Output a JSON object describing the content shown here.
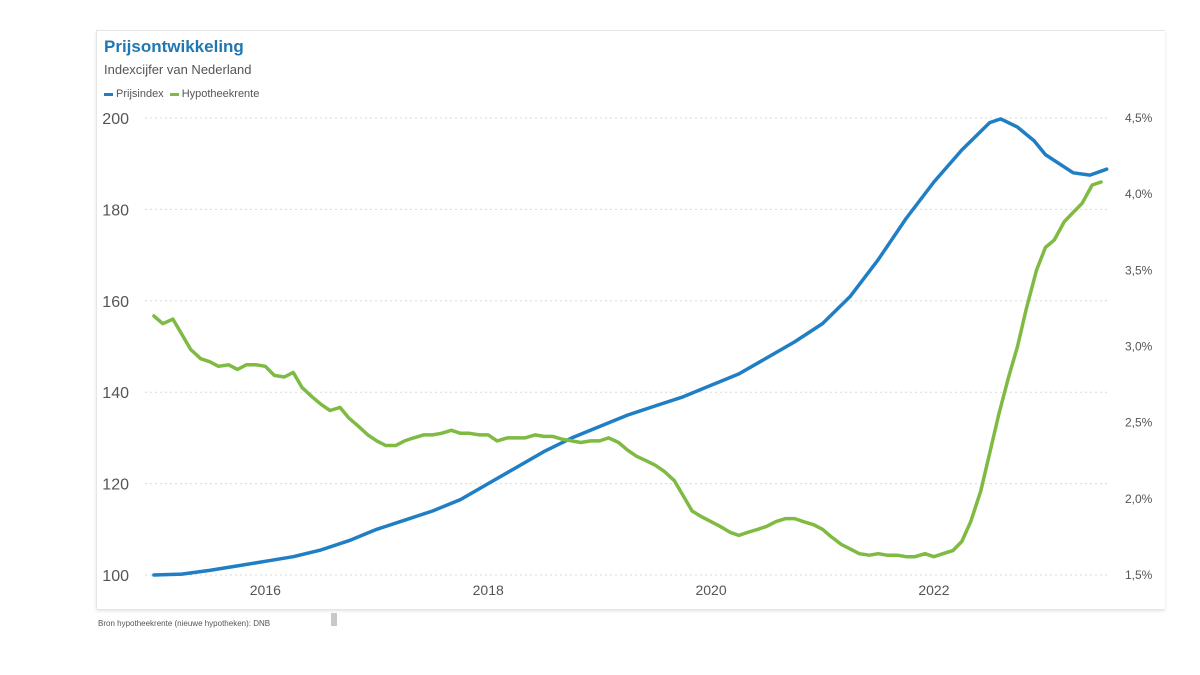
{
  "title": "Prijsontwikkeling",
  "subtitle": "Indexcijfer van Nederland",
  "source": "Bron hypotheekrente (nieuwe hypotheken): DNB",
  "colors": {
    "prijsindex": "#1f7ec4",
    "hypotheekrente": "#7fba42",
    "grid": "#d9d9d9",
    "axis_text": "#555555"
  },
  "chart_data": {
    "type": "line",
    "grid": true,
    "legend_position": "top-left",
    "x_ticks": [
      2016,
      2018,
      2020,
      2022
    ],
    "xlim": [
      2014.92,
      2023.58
    ],
    "y_left": {
      "lim": [
        100,
        200
      ],
      "ticks": [
        "100",
        "120",
        "140",
        "160",
        "180",
        "200"
      ]
    },
    "y_right": {
      "lim": [
        1.5,
        4.5
      ],
      "ticks": [
        "1,5%",
        "2,0%",
        "2,5%",
        "3,0%",
        "3,5%",
        "4,0%",
        "4,5%"
      ]
    },
    "series": [
      {
        "name": "Prijsindex",
        "axis": "left",
        "points": [
          [
            2015.0,
            100.0
          ],
          [
            2015.25,
            100.2
          ],
          [
            2015.5,
            101.0
          ],
          [
            2015.75,
            102.0
          ],
          [
            2016.0,
            103.0
          ],
          [
            2016.25,
            104.0
          ],
          [
            2016.5,
            105.5
          ],
          [
            2016.75,
            107.5
          ],
          [
            2017.0,
            110.0
          ],
          [
            2017.25,
            112.0
          ],
          [
            2017.5,
            114.0
          ],
          [
            2017.75,
            116.5
          ],
          [
            2018.0,
            120.0
          ],
          [
            2018.25,
            123.5
          ],
          [
            2018.5,
            127.0
          ],
          [
            2018.75,
            130.0
          ],
          [
            2019.0,
            132.5
          ],
          [
            2019.25,
            135.0
          ],
          [
            2019.5,
            137.0
          ],
          [
            2019.75,
            139.0
          ],
          [
            2020.0,
            141.5
          ],
          [
            2020.25,
            144.0
          ],
          [
            2020.5,
            147.5
          ],
          [
            2020.75,
            151.0
          ],
          [
            2021.0,
            155.0
          ],
          [
            2021.25,
            161.0
          ],
          [
            2021.5,
            169.0
          ],
          [
            2021.75,
            178.0
          ],
          [
            2022.0,
            186.0
          ],
          [
            2022.25,
            193.0
          ],
          [
            2022.5,
            199.0
          ],
          [
            2022.6,
            199.8
          ],
          [
            2022.75,
            198.0
          ],
          [
            2022.9,
            195.0
          ],
          [
            2023.0,
            192.0
          ],
          [
            2023.25,
            188.0
          ],
          [
            2023.4,
            187.5
          ],
          [
            2023.55,
            188.8
          ]
        ]
      },
      {
        "name": "Hypotheekrente",
        "axis": "right",
        "points": [
          [
            2015.0,
            3.2
          ],
          [
            2015.08,
            3.15
          ],
          [
            2015.17,
            3.18
          ],
          [
            2015.25,
            3.08
          ],
          [
            2015.33,
            2.98
          ],
          [
            2015.42,
            2.92
          ],
          [
            2015.5,
            2.9
          ],
          [
            2015.58,
            2.87
          ],
          [
            2015.67,
            2.88
          ],
          [
            2015.75,
            2.85
          ],
          [
            2015.83,
            2.88
          ],
          [
            2015.92,
            2.88
          ],
          [
            2016.0,
            2.87
          ],
          [
            2016.08,
            2.81
          ],
          [
            2016.17,
            2.8
          ],
          [
            2016.25,
            2.83
          ],
          [
            2016.33,
            2.73
          ],
          [
            2016.42,
            2.67
          ],
          [
            2016.5,
            2.62
          ],
          [
            2016.58,
            2.58
          ],
          [
            2016.67,
            2.6
          ],
          [
            2016.75,
            2.53
          ],
          [
            2016.83,
            2.48
          ],
          [
            2016.92,
            2.42
          ],
          [
            2017.0,
            2.38
          ],
          [
            2017.08,
            2.35
          ],
          [
            2017.17,
            2.35
          ],
          [
            2017.25,
            2.38
          ],
          [
            2017.33,
            2.4
          ],
          [
            2017.42,
            2.42
          ],
          [
            2017.5,
            2.42
          ],
          [
            2017.58,
            2.43
          ],
          [
            2017.67,
            2.45
          ],
          [
            2017.75,
            2.43
          ],
          [
            2017.83,
            2.43
          ],
          [
            2017.92,
            2.42
          ],
          [
            2018.0,
            2.42
          ],
          [
            2018.08,
            2.38
          ],
          [
            2018.17,
            2.4
          ],
          [
            2018.25,
            2.4
          ],
          [
            2018.33,
            2.4
          ],
          [
            2018.42,
            2.42
          ],
          [
            2018.5,
            2.41
          ],
          [
            2018.58,
            2.41
          ],
          [
            2018.67,
            2.39
          ],
          [
            2018.75,
            2.38
          ],
          [
            2018.83,
            2.37
          ],
          [
            2018.92,
            2.38
          ],
          [
            2019.0,
            2.38
          ],
          [
            2019.08,
            2.4
          ],
          [
            2019.17,
            2.37
          ],
          [
            2019.25,
            2.32
          ],
          [
            2019.33,
            2.28
          ],
          [
            2019.42,
            2.25
          ],
          [
            2019.5,
            2.22
          ],
          [
            2019.58,
            2.18
          ],
          [
            2019.67,
            2.12
          ],
          [
            2019.75,
            2.02
          ],
          [
            2019.83,
            1.92
          ],
          [
            2019.92,
            1.88
          ],
          [
            2020.0,
            1.85
          ],
          [
            2020.08,
            1.82
          ],
          [
            2020.17,
            1.78
          ],
          [
            2020.25,
            1.76
          ],
          [
            2020.33,
            1.78
          ],
          [
            2020.42,
            1.8
          ],
          [
            2020.5,
            1.82
          ],
          [
            2020.58,
            1.85
          ],
          [
            2020.67,
            1.87
          ],
          [
            2020.75,
            1.87
          ],
          [
            2020.83,
            1.85
          ],
          [
            2020.92,
            1.83
          ],
          [
            2021.0,
            1.8
          ],
          [
            2021.08,
            1.75
          ],
          [
            2021.17,
            1.7
          ],
          [
            2021.25,
            1.67
          ],
          [
            2021.33,
            1.64
          ],
          [
            2021.42,
            1.63
          ],
          [
            2021.5,
            1.64
          ],
          [
            2021.58,
            1.63
          ],
          [
            2021.67,
            1.63
          ],
          [
            2021.75,
            1.62
          ],
          [
            2021.83,
            1.62
          ],
          [
            2021.92,
            1.64
          ],
          [
            2022.0,
            1.62
          ],
          [
            2022.08,
            1.64
          ],
          [
            2022.17,
            1.66
          ],
          [
            2022.25,
            1.72
          ],
          [
            2022.33,
            1.85
          ],
          [
            2022.42,
            2.05
          ],
          [
            2022.5,
            2.3
          ],
          [
            2022.58,
            2.55
          ],
          [
            2022.67,
            2.8
          ],
          [
            2022.75,
            3.0
          ],
          [
            2022.83,
            3.25
          ],
          [
            2022.92,
            3.5
          ],
          [
            2023.0,
            3.65
          ],
          [
            2023.08,
            3.7
          ],
          [
            2023.17,
            3.82
          ],
          [
            2023.25,
            3.88
          ],
          [
            2023.33,
            3.94
          ],
          [
            2023.42,
            4.06
          ],
          [
            2023.5,
            4.08
          ]
        ]
      }
    ]
  }
}
